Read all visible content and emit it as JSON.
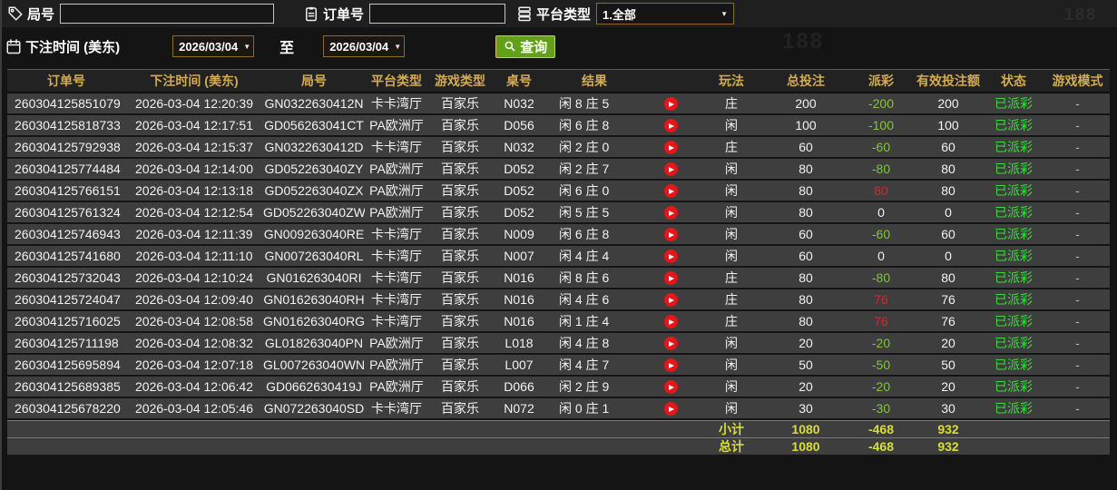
{
  "watermark": "188",
  "filters": {
    "round_label": "局号",
    "round_value": "",
    "order_label": "订单号",
    "order_value": "",
    "platform_label": "平台类型",
    "platform_selected": "1.全部",
    "time_label": "下注时间 (美东)",
    "to_label": "至",
    "date_from": "2026/03/04",
    "date_to": "2026/03/04",
    "search_label": "查询"
  },
  "colors": {
    "header_gold": "#d2ab52",
    "status_green": "#3bdb3b",
    "payout_negative_green": "#7ec832",
    "payout_positive_red": "#cc2a2a",
    "total_yellow": "#d9de35",
    "button_green": "#61a018",
    "play_icon_red": "#e01818",
    "row_bg": "#3e3e3e"
  },
  "table": {
    "columns": [
      "订单号",
      "下注时间 (美东)",
      "局号",
      "平台类型",
      "游戏类型",
      "桌号",
      "结果",
      "玩法",
      "总投注",
      "派彩",
      "有效投注额",
      "状态",
      "游戏模式"
    ],
    "rows": [
      {
        "order_no": "260304125851079",
        "bet_time": "2026-03-04 12:20:39",
        "round_no": "GN0322630412N",
        "platform": "卡卡湾厅",
        "game_type": "百家乐",
        "table_no": "N032",
        "result": "闲 8 庄 5",
        "play": "庄",
        "total_bet": "200",
        "payout": "-200",
        "valid_bet": "200",
        "status": "已派彩",
        "game_mode": "-"
      },
      {
        "order_no": "260304125818733",
        "bet_time": "2026-03-04 12:17:51",
        "round_no": "GD056263041CT",
        "platform": "PA欧洲厅",
        "game_type": "百家乐",
        "table_no": "D056",
        "result": "闲 6 庄 8",
        "play": "闲",
        "total_bet": "100",
        "payout": "-100",
        "valid_bet": "100",
        "status": "已派彩",
        "game_mode": "-"
      },
      {
        "order_no": "260304125792938",
        "bet_time": "2026-03-04 12:15:37",
        "round_no": "GN0322630412D",
        "platform": "卡卡湾厅",
        "game_type": "百家乐",
        "table_no": "N032",
        "result": "闲 2 庄 0",
        "play": "庄",
        "total_bet": "60",
        "payout": "-60",
        "valid_bet": "60",
        "status": "已派彩",
        "game_mode": "-"
      },
      {
        "order_no": "260304125774484",
        "bet_time": "2026-03-04 12:14:00",
        "round_no": "GD052263040ZY",
        "platform": "PA欧洲厅",
        "game_type": "百家乐",
        "table_no": "D052",
        "result": "闲 2 庄 7",
        "play": "闲",
        "total_bet": "80",
        "payout": "-80",
        "valid_bet": "80",
        "status": "已派彩",
        "game_mode": "-"
      },
      {
        "order_no": "260304125766151",
        "bet_time": "2026-03-04 12:13:18",
        "round_no": "GD052263040ZX",
        "platform": "PA欧洲厅",
        "game_type": "百家乐",
        "table_no": "D052",
        "result": "闲 6 庄 0",
        "play": "闲",
        "total_bet": "80",
        "payout": "80",
        "valid_bet": "80",
        "status": "已派彩",
        "game_mode": "-"
      },
      {
        "order_no": "260304125761324",
        "bet_time": "2026-03-04 12:12:54",
        "round_no": "GD052263040ZW",
        "platform": "PA欧洲厅",
        "game_type": "百家乐",
        "table_no": "D052",
        "result": "闲 5 庄 5",
        "play": "闲",
        "total_bet": "80",
        "payout": "0",
        "valid_bet": "0",
        "status": "已派彩",
        "game_mode": "-"
      },
      {
        "order_no": "260304125746943",
        "bet_time": "2026-03-04 12:11:39",
        "round_no": "GN009263040RE",
        "platform": "卡卡湾厅",
        "game_type": "百家乐",
        "table_no": "N009",
        "result": "闲 6 庄 8",
        "play": "闲",
        "total_bet": "60",
        "payout": "-60",
        "valid_bet": "60",
        "status": "已派彩",
        "game_mode": "-"
      },
      {
        "order_no": "260304125741680",
        "bet_time": "2026-03-04 12:11:10",
        "round_no": "GN007263040RL",
        "platform": "卡卡湾厅",
        "game_type": "百家乐",
        "table_no": "N007",
        "result": "闲 4 庄 4",
        "play": "闲",
        "total_bet": "60",
        "payout": "0",
        "valid_bet": "0",
        "status": "已派彩",
        "game_mode": "-"
      },
      {
        "order_no": "260304125732043",
        "bet_time": "2026-03-04 12:10:24",
        "round_no": "GN016263040RI",
        "platform": "卡卡湾厅",
        "game_type": "百家乐",
        "table_no": "N016",
        "result": "闲 8 庄 6",
        "play": "庄",
        "total_bet": "80",
        "payout": "-80",
        "valid_bet": "80",
        "status": "已派彩",
        "game_mode": "-"
      },
      {
        "order_no": "260304125724047",
        "bet_time": "2026-03-04 12:09:40",
        "round_no": "GN016263040RH",
        "platform": "卡卡湾厅",
        "game_type": "百家乐",
        "table_no": "N016",
        "result": "闲 4 庄 6",
        "play": "庄",
        "total_bet": "80",
        "payout": "76",
        "valid_bet": "76",
        "status": "已派彩",
        "game_mode": "-"
      },
      {
        "order_no": "260304125716025",
        "bet_time": "2026-03-04 12:08:58",
        "round_no": "GN016263040RG",
        "platform": "卡卡湾厅",
        "game_type": "百家乐",
        "table_no": "N016",
        "result": "闲 1 庄 4",
        "play": "庄",
        "total_bet": "80",
        "payout": "76",
        "valid_bet": "76",
        "status": "已派彩",
        "game_mode": "-"
      },
      {
        "order_no": "260304125711198",
        "bet_time": "2026-03-04 12:08:32",
        "round_no": "GL018263040PN",
        "platform": "PA欧洲厅",
        "game_type": "百家乐",
        "table_no": "L018",
        "result": "闲 4 庄 8",
        "play": "闲",
        "total_bet": "20",
        "payout": "-20",
        "valid_bet": "20",
        "status": "已派彩",
        "game_mode": "-"
      },
      {
        "order_no": "260304125695894",
        "bet_time": "2026-03-04 12:07:18",
        "round_no": "GL007263040WN",
        "platform": "PA欧洲厅",
        "game_type": "百家乐",
        "table_no": "L007",
        "result": "闲 4 庄 7",
        "play": "闲",
        "total_bet": "50",
        "payout": "-50",
        "valid_bet": "50",
        "status": "已派彩",
        "game_mode": "-"
      },
      {
        "order_no": "260304125689385",
        "bet_time": "2026-03-04 12:06:42",
        "round_no": "GD0662630419J",
        "platform": "PA欧洲厅",
        "game_type": "百家乐",
        "table_no": "D066",
        "result": "闲 2 庄 9",
        "play": "闲",
        "total_bet": "20",
        "payout": "-20",
        "valid_bet": "20",
        "status": "已派彩",
        "game_mode": "-"
      },
      {
        "order_no": "260304125678220",
        "bet_time": "2026-03-04 12:05:46",
        "round_no": "GN072263040SD",
        "platform": "卡卡湾厅",
        "game_type": "百家乐",
        "table_no": "N072",
        "result": "闲 0 庄 1",
        "play": "闲",
        "total_bet": "30",
        "payout": "-30",
        "valid_bet": "30",
        "status": "已派彩",
        "game_mode": "-"
      }
    ],
    "subtotal": {
      "label": "小计",
      "total_bet": "1080",
      "payout": "-468",
      "valid_bet": "932"
    },
    "grand_total": {
      "label": "总计",
      "total_bet": "1080",
      "payout": "-468",
      "valid_bet": "932"
    }
  }
}
